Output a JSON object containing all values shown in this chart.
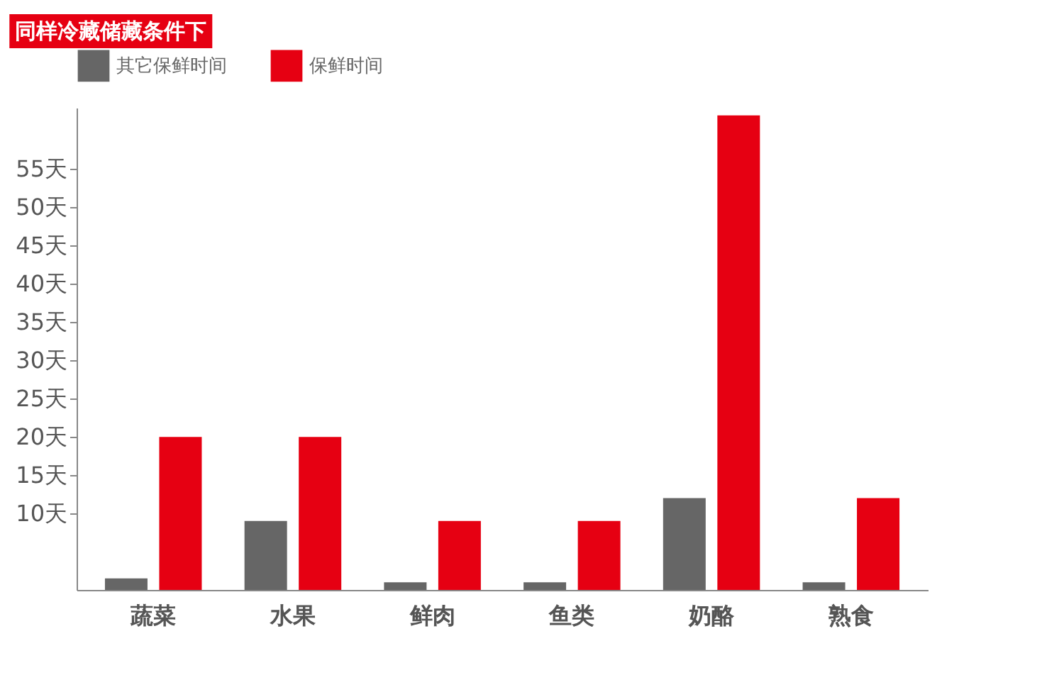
{
  "chart_data": {
    "type": "bar",
    "title": "同样冷藏储藏条件下",
    "categories": [
      "蔬菜",
      "水果",
      "鲜肉",
      "鱼类",
      "奶酪",
      "熟食"
    ],
    "series": [
      {
        "name": "其它保鲜时间",
        "color": "#666666",
        "values": [
          1.5,
          9,
          1,
          1,
          12,
          1
        ]
      },
      {
        "name": "保鲜时间",
        "color": "#e60012",
        "values": [
          20,
          20,
          9,
          9,
          62,
          12
        ]
      }
    ],
    "ylim": [
      0,
      63
    ],
    "yticks": [
      {
        "value": 10,
        "label": "10天"
      },
      {
        "value": 15,
        "label": "15天"
      },
      {
        "value": 20,
        "label": "20天"
      },
      {
        "value": 25,
        "label": "25天"
      },
      {
        "value": 30,
        "label": "30天"
      },
      {
        "value": 35,
        "label": "35天"
      },
      {
        "value": 40,
        "label": "40天"
      },
      {
        "value": 45,
        "label": "45天"
      },
      {
        "value": 50,
        "label": "50天"
      },
      {
        "value": 55,
        "label": "55天"
      }
    ],
    "grid": false,
    "legend": "top"
  }
}
